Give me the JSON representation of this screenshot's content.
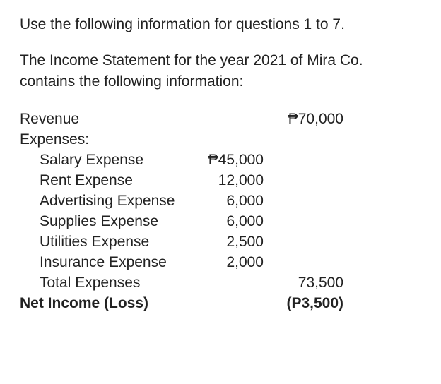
{
  "text_color": "#222222",
  "background_color": "#ffffff",
  "font_family": "Arial",
  "font_size_pt": 16,
  "intro": "Use the following information for questions 1 to 7.",
  "description": "The Income Statement for the year 2021 of Mira Co. contains the following information:",
  "statement": {
    "revenue": {
      "label": "Revenue",
      "amount": "₱70,000"
    },
    "expenses_header": "Expenses:",
    "expenses": [
      {
        "label": "Salary Expense",
        "amount": "₱45,000"
      },
      {
        "label": "Rent Expense",
        "amount": "12,000"
      },
      {
        "label": "Advertising Expense",
        "amount": "6,000"
      },
      {
        "label": "Supplies Expense",
        "amount": "6,000"
      },
      {
        "label": "Utilities Expense",
        "amount": "2,500"
      },
      {
        "label": "Insurance Expense",
        "amount": "2,000"
      }
    ],
    "total_expenses": {
      "label": "Total Expenses",
      "amount": "73,500"
    },
    "net_income": {
      "label": "Net Income (Loss)",
      "amount": "(P3,500)"
    }
  }
}
